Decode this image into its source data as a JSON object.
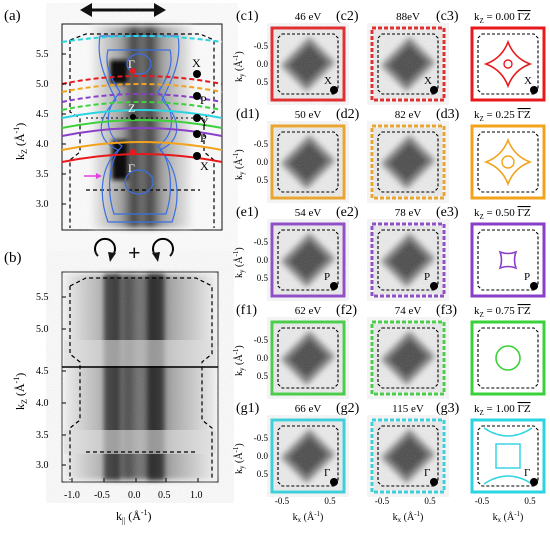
{
  "figure": {
    "panels": {
      "a": {
        "label": "(a)",
        "ylabel_main": "k",
        "ylabel_sub": "Z",
        "ylabel_unit": " (Å",
        "ylabel_exp": "-1",
        "ylabel_close": ")",
        "yticks": [
          "3.0",
          "3.5",
          "4.0",
          "4.5",
          "5.0",
          "5.5"
        ],
        "points": [
          {
            "name": "X",
            "side": "right"
          },
          {
            "name": "P",
            "side": "right"
          },
          {
            "name": "Y",
            "side": "right"
          },
          {
            "name": "P",
            "side": "right"
          },
          {
            "name": "X",
            "side": "right"
          }
        ],
        "center_labels": [
          "Γ",
          "Z",
          "Γ"
        ]
      },
      "b": {
        "label": "(b)",
        "ylabel_main": "k",
        "ylabel_sub": "Z",
        "ylabel_unit": " (Å",
        "ylabel_exp": "-1",
        "ylabel_close": ")",
        "yticks": [
          "3.0",
          "3.5",
          "4.0",
          "4.5",
          "5.0",
          "5.5"
        ],
        "xticks": [
          "-1.0",
          "-0.5",
          "0.0",
          "0.5",
          "1.0"
        ],
        "xlabel_main": "k",
        "xlabel_sub": "||",
        "xlabel_unit": " (Å",
        "xlabel_exp": "-1",
        "xlabel_close": ")",
        "plus": "+"
      }
    },
    "grid": {
      "rows": [
        {
          "cells": [
            {
              "label": "(c1)",
              "title": "46 eV",
              "color": "#e8191c",
              "dashed": false,
              "marker": "X"
            },
            {
              "label": "(c2)",
              "title": "88eV",
              "color": "#e8191c",
              "dashed": true,
              "marker": "X"
            },
            {
              "label": "(c3)",
              "title": "k",
              "title_sub": "Z",
              "title_rest": " = 0.00 ",
              "title_over": "ΓZ",
              "color": "#e8191c",
              "marker": "X"
            }
          ]
        },
        {
          "cells": [
            {
              "label": "(d1)",
              "title": "50 eV",
              "color": "#f2a31b",
              "dashed": false
            },
            {
              "label": "(d2)",
              "title": "82 eV",
              "color": "#f2a31b",
              "dashed": true
            },
            {
              "label": "(d3)",
              "title": "k",
              "title_sub": "Z",
              "title_rest": " = 0.25 ",
              "title_over": "ΓZ",
              "color": "#f2a31b"
            }
          ]
        },
        {
          "cells": [
            {
              "label": "(e1)",
              "title": "54 eV",
              "color": "#8a3fc9",
              "dashed": false,
              "marker": "P"
            },
            {
              "label": "(e2)",
              "title": "78 eV",
              "color": "#8a3fc9",
              "dashed": true,
              "marker": "P"
            },
            {
              "label": "(e3)",
              "title": "k",
              "title_sub": "Z",
              "title_rest": " = 0.50 ",
              "title_over": "ΓZ",
              "color": "#8a3fc9",
              "marker": "P"
            }
          ]
        },
        {
          "cells": [
            {
              "label": "(f1)",
              "title": "62 eV",
              "color": "#3ad13a",
              "dashed": false
            },
            {
              "label": "(f2)",
              "title": "74 eV",
              "color": "#3ad13a",
              "dashed": true
            },
            {
              "label": "(f3)",
              "title": "k",
              "title_sub": "Z",
              "title_rest": " = 0.75 ",
              "title_over": "ΓZ",
              "color": "#3ad13a"
            }
          ]
        },
        {
          "cells": [
            {
              "label": "(g1)",
              "title": "66 eV",
              "color": "#2ad4e0",
              "dashed": false,
              "marker": "Γ"
            },
            {
              "label": "(g2)",
              "title": "115 eV",
              "color": "#2ad4e0",
              "dashed": true,
              "marker": "Γ"
            },
            {
              "label": "(g3)",
              "title": "k",
              "title_sub": "Z",
              "title_rest": " = 1.00 ",
              "title_over": "ΓZ",
              "color": "#2ad4e0",
              "marker": "Γ"
            }
          ]
        }
      ],
      "ylabel_main": "k",
      "ylabel_sub": "y",
      "ylabel_unit": " (Å",
      "ylabel_exp": "-1",
      "ylabel_close": ")",
      "yticks": [
        "-0.5",
        "0.0",
        "0.5"
      ],
      "xticks": [
        "-0.5",
        "0.5"
      ],
      "xlabel_main": "k",
      "xlabel_sub": "x",
      "xlabel_unit": " (Å",
      "xlabel_exp": "-1",
      "xlabel_close": ")"
    },
    "colors": {
      "red": "#e8191c",
      "orange": "#f2a31b",
      "purple": "#8a3fc9",
      "green": "#3ad13a",
      "cyan": "#2ad4e0",
      "blue_contour": "#3b6fe0",
      "magenta_arrow": "#e040e0"
    }
  }
}
